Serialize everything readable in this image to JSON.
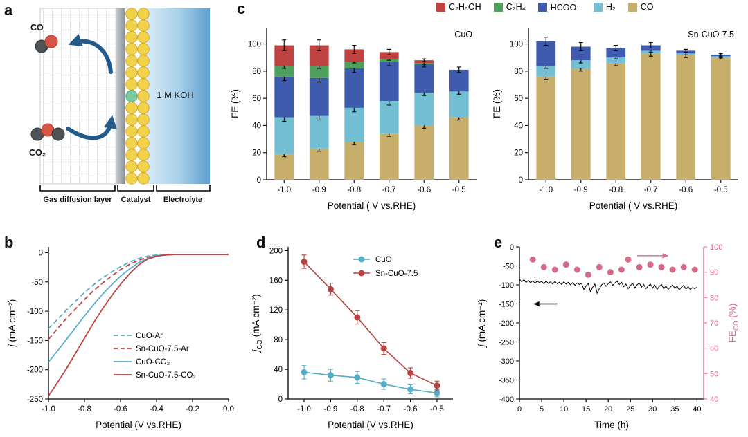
{
  "panels": {
    "a": {
      "letter": "a",
      "co_label": "CO",
      "co2_label": "CO₂",
      "koh_label": "1 M KOH",
      "layer_labels": [
        "Gas diffusion layer",
        "Catalyst",
        "Electrolyte"
      ]
    },
    "b": {
      "letter": "b"
    },
    "c": {
      "letter": "c",
      "legend": {
        "items": [
          {
            "label": "C₂H₅OH",
            "color": "#bf4340"
          },
          {
            "label": "C₂H₄",
            "color": "#4ea15c"
          },
          {
            "label": "HCOO⁻",
            "color": "#3f5bae"
          },
          {
            "label": "H₂",
            "color": "#72bfd4"
          },
          {
            "label": "CO",
            "color": "#c7ae6b"
          }
        ]
      }
    },
    "d": {
      "letter": "d"
    },
    "e": {
      "letter": "e"
    }
  },
  "chart_data": [
    {
      "id": "b",
      "type": "line",
      "xlabel": "Potential (V vs.RHE)",
      "ylabel_parts": [
        {
          "t": "j",
          "i": true
        },
        {
          "t": " (mA cm⁻²)"
        }
      ],
      "xlim": [
        -1.0,
        0.0
      ],
      "ylim": [
        -250,
        10
      ],
      "xticks": [
        -1.0,
        -0.8,
        -0.6,
        -0.4,
        -0.2,
        0.0
      ],
      "xtick_labels": [
        "-1.0",
        "-0.8",
        "-0.6",
        "-0.4",
        "-0.2",
        "0.0"
      ],
      "yticks": [
        0,
        -50,
        -100,
        -150,
        -200,
        -250
      ],
      "ytick_labels": [
        "0",
        "-50",
        "-100",
        "-150",
        "-200",
        "-250"
      ],
      "x": [
        -1.0,
        -0.95,
        -0.9,
        -0.85,
        -0.8,
        -0.75,
        -0.7,
        -0.65,
        -0.6,
        -0.55,
        -0.5,
        -0.45,
        -0.4,
        -0.35,
        -0.3,
        -0.2,
        -0.1,
        0.0
      ],
      "series": [
        {
          "name": "CuO-Ar",
          "color": "#58afc7",
          "dash": true,
          "y": [
            -130,
            -114,
            -98,
            -83,
            -68,
            -55,
            -43,
            -33,
            -24,
            -16,
            -10,
            -6,
            -4,
            -3,
            -3,
            -3,
            -3,
            -3
          ]
        },
        {
          "name": "Sn-CuO-7.5-Ar",
          "color": "#bf4340",
          "dash": true,
          "y": [
            -148,
            -130,
            -112,
            -96,
            -80,
            -65,
            -52,
            -40,
            -29,
            -20,
            -13,
            -8,
            -5,
            -4,
            -3,
            -3,
            -3,
            -3
          ]
        },
        {
          "name": "CuO-CO₂",
          "color": "#58afc7",
          "dash": false,
          "y": [
            -187,
            -168,
            -148,
            -128,
            -108,
            -89,
            -71,
            -55,
            -40,
            -28,
            -17,
            -10,
            -5,
            -4,
            -3,
            -3,
            -3,
            -3
          ]
        },
        {
          "name": "Sn-CuO-7.5-CO₂",
          "color": "#bf4340",
          "dash": false,
          "y": [
            -245,
            -222,
            -198,
            -172,
            -146,
            -120,
            -96,
            -74,
            -54,
            -36,
            -21,
            -11,
            -6,
            -4,
            -3,
            -3,
            -3,
            -3
          ]
        }
      ]
    },
    {
      "id": "c_left",
      "type": "stacked_bar",
      "title": "CuO",
      "xlabel": "Potential ( V vs.RHE)",
      "ylabel_parts": [
        {
          "t": "FE (%)"
        }
      ],
      "categories": [
        "-1.0",
        "-0.9",
        "-0.8",
        "-0.7",
        "-0.6",
        "-0.5"
      ],
      "ylim": [
        0,
        112
      ],
      "yticks": [
        0,
        20,
        40,
        60,
        80,
        100
      ],
      "ytick_labels": [
        "0",
        "20",
        "40",
        "60",
        "80",
        "100"
      ],
      "series": [
        {
          "name": "CO",
          "color": "#c7ae6b",
          "values": [
            19,
            23,
            28,
            34,
            40,
            46
          ],
          "err": [
            2,
            2,
            2,
            2,
            2,
            2
          ]
        },
        {
          "name": "H₂",
          "color": "#72bfd4",
          "values": [
            27,
            24,
            25,
            24,
            24,
            19
          ],
          "err": [
            3,
            3,
            3,
            3,
            2,
            2
          ]
        },
        {
          "name": "HCOO⁻",
          "color": "#3f5bae",
          "values": [
            30,
            28,
            29,
            29,
            21,
            16
          ],
          "err": [
            3,
            3,
            3,
            3,
            2,
            2
          ]
        },
        {
          "name": "C₂H₄",
          "color": "#4ea15c",
          "values": [
            8,
            9,
            5,
            2,
            1,
            0
          ],
          "err": [
            2,
            2,
            1,
            1,
            1,
            0
          ]
        },
        {
          "name": "C₂H₅OH",
          "color": "#bf4340",
          "values": [
            15,
            15,
            9,
            5,
            2,
            0
          ],
          "err": [
            4,
            4,
            3,
            2,
            1,
            0
          ]
        }
      ]
    },
    {
      "id": "c_right",
      "type": "stacked_bar",
      "title": "Sn-CuO-7.5",
      "xlabel": "Potential ( V vs.RHE)",
      "ylabel_parts": [
        {
          "t": "FE (%)"
        }
      ],
      "categories": [
        "-1.0",
        "-0.9",
        "-0.8",
        "-0.7",
        "-0.6",
        "-0.5"
      ],
      "ylim": [
        0,
        112
      ],
      "yticks": [
        0,
        20,
        40,
        60,
        80,
        100
      ],
      "ytick_labels": [
        "0",
        "20",
        "40",
        "60",
        "80",
        "100"
      ],
      "series": [
        {
          "name": "CO",
          "color": "#c7ae6b",
          "values": [
            76,
            82,
            86,
            93,
            92,
            90
          ],
          "err": [
            2,
            2,
            2,
            2,
            2,
            1
          ]
        },
        {
          "name": "H₂",
          "color": "#72bfd4",
          "values": [
            8,
            6,
            4,
            2,
            1,
            1
          ],
          "err": [
            2,
            2,
            1,
            1,
            1,
            1
          ]
        },
        {
          "name": "HCOO⁻",
          "color": "#3f5bae",
          "values": [
            18,
            10,
            7,
            4,
            2,
            1
          ],
          "err": [
            3,
            3,
            2,
            2,
            1,
            1
          ]
        }
      ]
    },
    {
      "id": "d",
      "type": "line_markers",
      "xlabel": "Potential (V vs.RHE)",
      "ylabel_parts": [
        {
          "t": "j",
          "i": true
        },
        {
          "t": "CO",
          "s": true
        },
        {
          "t": " (mA cm⁻²)"
        }
      ],
      "xlim": [
        -1.06,
        -0.44
      ],
      "ylim": [
        0,
        205
      ],
      "xticks": [
        -1.0,
        -0.9,
        -0.8,
        -0.7,
        -0.6,
        -0.5
      ],
      "xtick_labels": [
        "-1.0",
        "-0.9",
        "-0.8",
        "-0.7",
        "-0.6",
        "-0.5"
      ],
      "yticks": [
        0,
        40,
        80,
        120,
        160,
        200
      ],
      "ytick_labels": [
        "0",
        "40",
        "80",
        "120",
        "160",
        "200"
      ],
      "x": [
        -1.0,
        -0.9,
        -0.8,
        -0.7,
        -0.6,
        -0.5
      ],
      "series": [
        {
          "name": "CuO",
          "color": "#53aec6",
          "values": [
            36,
            32,
            29,
            20,
            13,
            8
          ],
          "err": [
            9,
            8,
            8,
            7,
            6,
            5
          ]
        },
        {
          "name": "Sn-CuO-7.5",
          "color": "#b5423f",
          "values": [
            185,
            148,
            110,
            68,
            35,
            18
          ],
          "err": [
            9,
            8,
            9,
            8,
            7,
            6
          ]
        }
      ]
    },
    {
      "id": "e",
      "type": "dual_axis",
      "xlabel": "Time (h)",
      "ylabel_parts": [
        {
          "t": "j",
          "i": true
        },
        {
          "t": " (mA cm⁻²)"
        }
      ],
      "ylabel_right_parts": [
        {
          "t": "FE"
        },
        {
          "t": "CO",
          "s": true
        },
        {
          "t": " (%)"
        }
      ],
      "xlim": [
        0,
        41.5
      ],
      "xticks": [
        0,
        5,
        10,
        15,
        20,
        25,
        30,
        35,
        40
      ],
      "xtick_labels": [
        "0",
        "5",
        "10",
        "15",
        "20",
        "25",
        "30",
        "35",
        "40"
      ],
      "ylim": [
        -400,
        0
      ],
      "yticks": [
        0,
        -50,
        -100,
        -150,
        -200,
        -250,
        -300,
        -350,
        -400
      ],
      "ytick_labels": [
        "0",
        "-50",
        "-100",
        "-150",
        "-200",
        "-250",
        "-300",
        "-350",
        "-400"
      ],
      "ylim_right": [
        40,
        100
      ],
      "yticks_right": [
        40,
        50,
        60,
        70,
        80,
        90,
        100
      ],
      "ytick_labels_right": [
        "40",
        "50",
        "60",
        "70",
        "80",
        "90",
        "100"
      ],
      "right_color": "#d76a86",
      "j_series": {
        "name": "j",
        "color": "#000000",
        "t0": 0,
        "t_step": 0.5,
        "y": [
          -85,
          -92,
          -86,
          -94,
          -88,
          -95,
          -89,
          -96,
          -90,
          -94,
          -91,
          -97,
          -90,
          -96,
          -92,
          -98,
          -91,
          -97,
          -93,
          -99,
          -92,
          -98,
          -93,
          -100,
          -94,
          -101,
          -95,
          -99,
          -96,
          -112,
          -103,
          -96,
          -118,
          -106,
          -98,
          -122,
          -110,
          -100,
          -95,
          -104,
          -97,
          -92,
          -101,
          -95,
          -90,
          -99,
          -93,
          -105,
          -98,
          -110,
          -102,
          -96,
          -108,
          -100,
          -95,
          -106,
          -99,
          -110,
          -103,
          -98,
          -108,
          -101,
          -112,
          -104,
          -99,
          -110,
          -103,
          -112,
          -106,
          -100,
          -109,
          -103,
          -113,
          -106,
          -101,
          -111,
          -105,
          -112,
          -107,
          -110,
          -106
        ]
      },
      "fe_series": {
        "name": "FE_CO",
        "color": "#d76a86",
        "t": [
          3,
          5.5,
          8,
          10.5,
          13,
          15.5,
          18,
          20.5,
          23,
          24.5,
          27,
          29.5,
          32,
          34.5,
          37,
          39.5
        ],
        "y": [
          95,
          92,
          91,
          93,
          91,
          89,
          92,
          90,
          91,
          95,
          92,
          93,
          92,
          91,
          92,
          91
        ]
      },
      "annotations": [
        {
          "type": "arrow",
          "axis": "left",
          "color": "#000000",
          "x1": 8.5,
          "x2": 3.2,
          "y": -150
        },
        {
          "type": "arrow",
          "axis": "right",
          "color": "#d76a86",
          "x1": 26.5,
          "x2": 33.5,
          "y": 96.5
        }
      ]
    }
  ]
}
